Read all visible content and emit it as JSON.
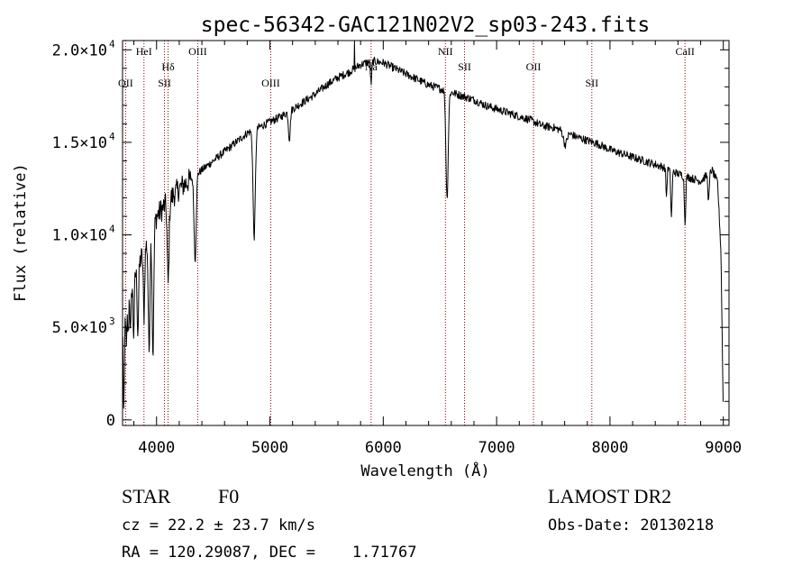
{
  "chart_data": {
    "type": "line",
    "title": "spec-56342-GAC121N02V2_sp03-243.fits",
    "xlabel": "Wavelength (Å)",
    "ylabel": "Flux (relative)",
    "xlim": [
      3700,
      9050
    ],
    "ylim": [
      -300,
      20500
    ],
    "xticks": [
      {
        "value": 4000,
        "label": "4000"
      },
      {
        "value": 5000,
        "label": "5000"
      },
      {
        "value": 6000,
        "label": "6000"
      },
      {
        "value": 7000,
        "label": "7000"
      },
      {
        "value": 8000,
        "label": "8000"
      },
      {
        "value": 9000,
        "label": "9000"
      }
    ],
    "yticks": [
      {
        "value": 0,
        "mantissa": "0",
        "exponent": ""
      },
      {
        "value": 5000,
        "mantissa": "5.0×10",
        "exponent": "3"
      },
      {
        "value": 10000,
        "mantissa": "1.0×10",
        "exponent": "4"
      },
      {
        "value": 15000,
        "mantissa": "1.5×10",
        "exponent": "4"
      },
      {
        "value": 20000,
        "mantissa": "2.0×10",
        "exponent": "4"
      }
    ],
    "grid": false,
    "line_color": "#000000",
    "marker_color": "#8b0000",
    "lines": [
      {
        "label": "OII",
        "wavelength": 3727,
        "row": 2
      },
      {
        "label": "HeI",
        "wavelength": 3889,
        "row": 0
      },
      {
        "label": "SII",
        "wavelength": 4070,
        "row": 2
      },
      {
        "label": "Hδ",
        "wavelength": 4102,
        "row": 1
      },
      {
        "label": "OIII",
        "wavelength": 4363,
        "row": 0
      },
      {
        "label": "OIII",
        "wavelength": 5007,
        "row": 2
      },
      {
        "label": "Na",
        "wavelength": 5893,
        "row": 1
      },
      {
        "label": "NII",
        "wavelength": 6548,
        "row": 0
      },
      {
        "label": "SII",
        "wavelength": 6717,
        "row": 1
      },
      {
        "label": "OII",
        "wavelength": 7325,
        "row": 1
      },
      {
        "label": "SII",
        "wavelength": 7840,
        "row": 2
      },
      {
        "label": "CaII",
        "wavelength": 8662,
        "row": 0
      }
    ],
    "continuum": [
      [
        3700,
        6200
      ],
      [
        3760,
        7200
      ],
      [
        3820,
        8000
      ],
      [
        3880,
        9000
      ],
      [
        3950,
        10000
      ],
      [
        4000,
        11000
      ],
      [
        4100,
        11800
      ],
      [
        4200,
        12500
      ],
      [
        4300,
        13000
      ],
      [
        4400,
        13500
      ],
      [
        4500,
        14000
      ],
      [
        4600,
        14500
      ],
      [
        4700,
        15000
      ],
      [
        4800,
        15500
      ],
      [
        4900,
        15800
      ],
      [
        5000,
        16100
      ],
      [
        5100,
        16400
      ],
      [
        5200,
        16800
      ],
      [
        5300,
        17200
      ],
      [
        5400,
        17600
      ],
      [
        5500,
        18100
      ],
      [
        5600,
        18500
      ],
      [
        5700,
        18800
      ],
      [
        5800,
        19200
      ],
      [
        5900,
        19400
      ],
      [
        6000,
        19300
      ],
      [
        6100,
        19000
      ],
      [
        6200,
        18700
      ],
      [
        6300,
        18400
      ],
      [
        6400,
        18100
      ],
      [
        6500,
        17900
      ],
      [
        6600,
        17700
      ],
      [
        6700,
        17500
      ],
      [
        6800,
        17300
      ],
      [
        6900,
        17000
      ],
      [
        7000,
        16800
      ],
      [
        7100,
        16600
      ],
      [
        7200,
        16400
      ],
      [
        7300,
        16200
      ],
      [
        7400,
        15900
      ],
      [
        7500,
        15800
      ],
      [
        7600,
        15600
      ],
      [
        7700,
        15300
      ],
      [
        7800,
        15100
      ],
      [
        7900,
        14900
      ],
      [
        8000,
        14600
      ],
      [
        8100,
        14400
      ],
      [
        8200,
        14200
      ],
      [
        8300,
        14000
      ],
      [
        8400,
        13800
      ],
      [
        8500,
        13600
      ],
      [
        8600,
        13300
      ],
      [
        8700,
        13100
      ],
      [
        8800,
        12900
      ],
      [
        8900,
        13500
      ],
      [
        8950,
        12800
      ],
      [
        8980,
        9000
      ],
      [
        8995,
        2000
      ],
      [
        9000,
        300
      ]
    ],
    "absorption": [
      {
        "center": 3711,
        "depth": 6000,
        "width": 6
      },
      {
        "center": 3734,
        "depth": 3000,
        "width": 5
      },
      {
        "center": 3750,
        "depth": 2500,
        "width": 5
      },
      {
        "center": 3771,
        "depth": 2800,
        "width": 5
      },
      {
        "center": 3798,
        "depth": 3000,
        "width": 6
      },
      {
        "center": 3835,
        "depth": 3500,
        "width": 6
      },
      {
        "center": 3889,
        "depth": 3500,
        "width": 6
      },
      {
        "center": 3934,
        "depth": 6000,
        "width": 7
      },
      {
        "center": 3968,
        "depth": 6800,
        "width": 7
      },
      {
        "center": 4102,
        "depth": 4500,
        "width": 8
      },
      {
        "center": 4340,
        "depth": 4600,
        "width": 9
      },
      {
        "center": 4861,
        "depth": 5800,
        "width": 10
      },
      {
        "center": 5172,
        "depth": 1500,
        "width": 8
      },
      {
        "center": 5893,
        "depth": 1200,
        "width": 6
      },
      {
        "center": 6563,
        "depth": 5800,
        "width": 10
      },
      {
        "center": 7605,
        "depth": 700,
        "width": 15
      },
      {
        "center": 8498,
        "depth": 1500,
        "width": 5
      },
      {
        "center": 8542,
        "depth": 2500,
        "width": 6
      },
      {
        "center": 8662,
        "depth": 2500,
        "width": 6
      },
      {
        "center": 8870,
        "depth": 1500,
        "width": 6
      }
    ],
    "spikes": [
      {
        "wavelength": 5745,
        "flux": 20300
      }
    ],
    "noise_amplitude": 220
  },
  "info": {
    "object_class": "STAR",
    "subclass": "F0",
    "survey": "LAMOST DR2",
    "cz_line": "cz = 22.2 ± 23.7 km/s",
    "obs_date": "Obs-Date: 20130218",
    "coords": "RA = 120.29087, DEC =    1.71767"
  }
}
